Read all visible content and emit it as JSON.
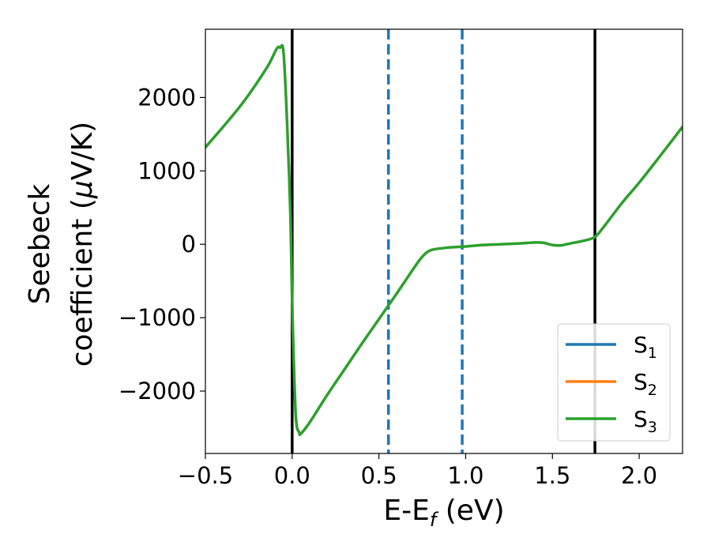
{
  "chart_data": {
    "type": "line",
    "xlabel_main": "E-E",
    "xlabel_sub": "f",
    "xlabel_unit": " (eV)",
    "ylabel_line1": "Seebeck",
    "ylabel_line2_prefix": "coefficient  (",
    "ylabel_line2_mu": "μ",
    "ylabel_line2_suffix": "V/K)",
    "xlim": [
      -0.5,
      2.25
    ],
    "ylim": [
      -2850,
      2930
    ],
    "xticks": [
      -0.5,
      0.0,
      0.5,
      1.0,
      1.5,
      2.0
    ],
    "xtick_labels": [
      "−0.5",
      "0.0",
      "0.5",
      "1.0",
      "1.5",
      "2.0"
    ],
    "yticks": [
      -2000,
      -1000,
      0,
      1000,
      2000
    ],
    "ytick_labels": [
      "−2000",
      "−1000",
      "0",
      "1000",
      "2000"
    ],
    "vlines": [
      {
        "x": 0.0,
        "style": "solid",
        "color": "#000000"
      },
      {
        "x": 1.745,
        "style": "solid",
        "color": "#000000"
      },
      {
        "x": 0.555,
        "style": "dashed",
        "color": "#1f77b4"
      },
      {
        "x": 0.98,
        "style": "dashed",
        "color": "#1f77b4"
      }
    ],
    "legend_position": "bottom-right",
    "series": [
      {
        "name": "S",
        "subscript": "1",
        "color": "#1f77b4",
        "x": [],
        "y": []
      },
      {
        "name": "S",
        "subscript": "2",
        "color": "#ff7f0e",
        "x": [],
        "y": []
      },
      {
        "name": "S",
        "subscript": "3",
        "color": "#2ca02c",
        "x": [
          -0.5,
          -0.3,
          -0.15,
          -0.09,
          -0.07,
          -0.05,
          -0.03,
          -0.01,
          0.0,
          0.02,
          0.04,
          0.05,
          0.1,
          0.2,
          0.3,
          0.4,
          0.5,
          0.6,
          0.7,
          0.75,
          0.8,
          0.9,
          1.0,
          1.1,
          1.2,
          1.3,
          1.4,
          1.45,
          1.5,
          1.55,
          1.6,
          1.7,
          1.75,
          1.8,
          1.9,
          2.0,
          2.1,
          2.25
        ],
        "y": [
          1320,
          1880,
          2390,
          2660,
          2680,
          2620,
          1700,
          400,
          -800,
          -2300,
          -2560,
          -2580,
          -2430,
          -2060,
          -1710,
          -1360,
          -1020,
          -680,
          -330,
          -170,
          -80,
          -45,
          -30,
          -10,
          0,
          10,
          25,
          20,
          -10,
          -15,
          10,
          60,
          110,
          250,
          560,
          840,
          1140,
          1600
        ]
      }
    ]
  }
}
